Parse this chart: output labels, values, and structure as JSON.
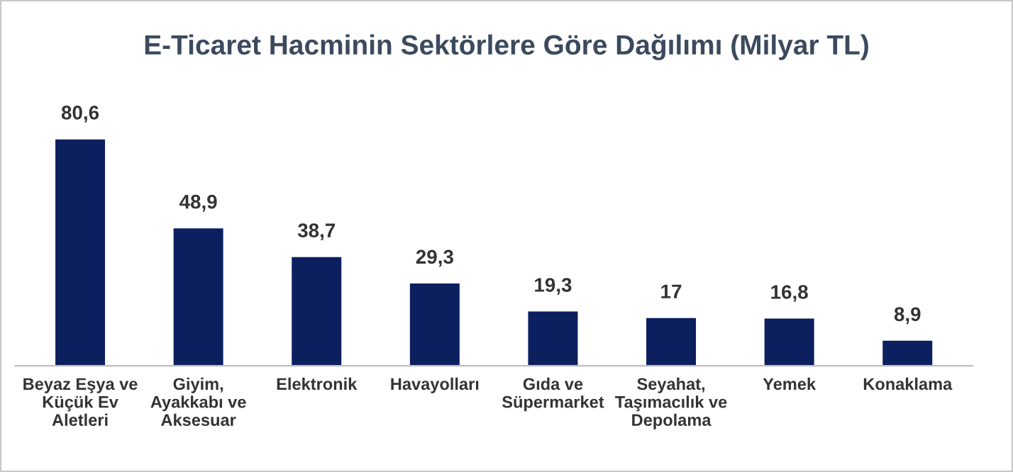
{
  "chart_data": {
    "type": "bar",
    "title": "E-Ticaret Hacminin Sektörlere Göre Dağılımı (Milyar TL)",
    "categories": [
      "Beyaz Eşya ve\nKüçük Ev\nAletleri",
      "Giyim,\nAyakkabı ve\nAksesuar",
      "Elektronik",
      "Havayolları",
      "Gıda ve\nSüpermarket",
      "Seyahat,\nTaşımacılık ve\nDepolama",
      "Yemek",
      "Konaklama"
    ],
    "values": [
      80.6,
      48.9,
      38.7,
      29.3,
      19.3,
      17,
      16.8,
      8.9
    ],
    "value_labels": [
      "80,6",
      "48,9",
      "38,7",
      "29,3",
      "19,3",
      "17",
      "16,8",
      "8,9"
    ],
    "color": "#0c1f5e",
    "grid": false,
    "legend": false
  }
}
